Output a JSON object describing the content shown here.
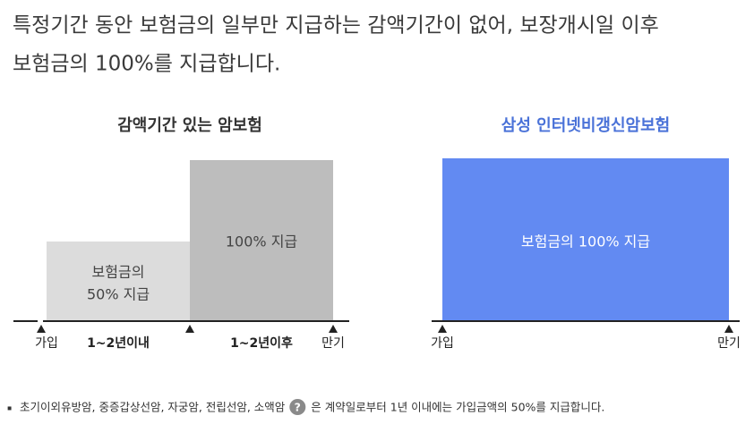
{
  "intro": {
    "lines": [
      "특정기간 동안 보험금의 일부만 지급하는 감액기간이 없어, 보장개시일 이후",
      "보험금의 100%를 지급합니다."
    ]
  },
  "left": {
    "title": "감액기간 있는 암보험",
    "reduced_box": [
      "보험금의",
      "50% 지급"
    ],
    "full_box": "100% 지급",
    "axis_labels": [
      "가입",
      "1~2년이내",
      "1~2년이후",
      "만기"
    ]
  },
  "right": {
    "title": "삼성 인터넷비갱신암보험",
    "box": "보험금의 100% 지급",
    "axis_labels": [
      "가입",
      "만기"
    ]
  },
  "footnote": {
    "bullet": "▪",
    "cancers": "초기이외유방암, 중증갑상선암, 자궁암, 전립선암, 소액암",
    "icon": "?",
    "text": "은 계약일로부터 1년 이내에는 가입금액의 50%를 지급합니다."
  }
}
